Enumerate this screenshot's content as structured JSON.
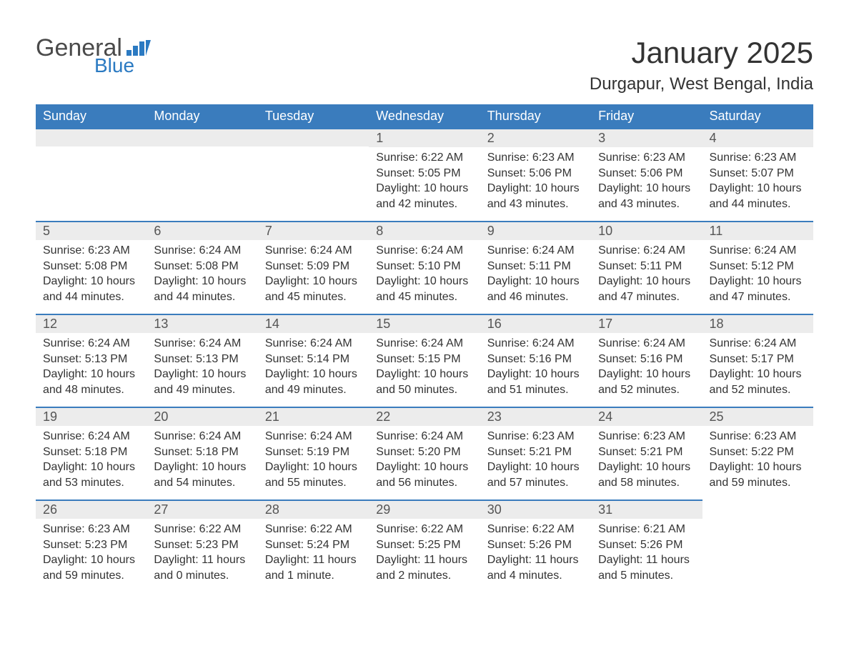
{
  "brand": {
    "word1": "General",
    "word2": "Blue"
  },
  "title": "January 2025",
  "location": "Durgapur, West Bengal, India",
  "colors": {
    "header_bg": "#3a7cbd",
    "header_text": "#ffffff",
    "daynum_bg": "#ececec",
    "row_border": "#3a7cbd",
    "body_text": "#333333",
    "logo_gray": "#4a4a4a",
    "logo_blue": "#2b7ac2",
    "page_bg": "#ffffff"
  },
  "typography": {
    "title_fontsize": 42,
    "location_fontsize": 24,
    "header_fontsize": 18,
    "daynum_fontsize": 18,
    "body_fontsize": 16
  },
  "layout": {
    "columns": 7,
    "rows": 5,
    "first_day_column_index": 3
  },
  "weekdays": [
    "Sunday",
    "Monday",
    "Tuesday",
    "Wednesday",
    "Thursday",
    "Friday",
    "Saturday"
  ],
  "days": [
    {
      "n": 1,
      "sunrise": "6:22 AM",
      "sunset": "5:05 PM",
      "daylight": "10 hours and 42 minutes."
    },
    {
      "n": 2,
      "sunrise": "6:23 AM",
      "sunset": "5:06 PM",
      "daylight": "10 hours and 43 minutes."
    },
    {
      "n": 3,
      "sunrise": "6:23 AM",
      "sunset": "5:06 PM",
      "daylight": "10 hours and 43 minutes."
    },
    {
      "n": 4,
      "sunrise": "6:23 AM",
      "sunset": "5:07 PM",
      "daylight": "10 hours and 44 minutes."
    },
    {
      "n": 5,
      "sunrise": "6:23 AM",
      "sunset": "5:08 PM",
      "daylight": "10 hours and 44 minutes."
    },
    {
      "n": 6,
      "sunrise": "6:24 AM",
      "sunset": "5:08 PM",
      "daylight": "10 hours and 44 minutes."
    },
    {
      "n": 7,
      "sunrise": "6:24 AM",
      "sunset": "5:09 PM",
      "daylight": "10 hours and 45 minutes."
    },
    {
      "n": 8,
      "sunrise": "6:24 AM",
      "sunset": "5:10 PM",
      "daylight": "10 hours and 45 minutes."
    },
    {
      "n": 9,
      "sunrise": "6:24 AM",
      "sunset": "5:11 PM",
      "daylight": "10 hours and 46 minutes."
    },
    {
      "n": 10,
      "sunrise": "6:24 AM",
      "sunset": "5:11 PM",
      "daylight": "10 hours and 47 minutes."
    },
    {
      "n": 11,
      "sunrise": "6:24 AM",
      "sunset": "5:12 PM",
      "daylight": "10 hours and 47 minutes."
    },
    {
      "n": 12,
      "sunrise": "6:24 AM",
      "sunset": "5:13 PM",
      "daylight": "10 hours and 48 minutes."
    },
    {
      "n": 13,
      "sunrise": "6:24 AM",
      "sunset": "5:13 PM",
      "daylight": "10 hours and 49 minutes."
    },
    {
      "n": 14,
      "sunrise": "6:24 AM",
      "sunset": "5:14 PM",
      "daylight": "10 hours and 49 minutes."
    },
    {
      "n": 15,
      "sunrise": "6:24 AM",
      "sunset": "5:15 PM",
      "daylight": "10 hours and 50 minutes."
    },
    {
      "n": 16,
      "sunrise": "6:24 AM",
      "sunset": "5:16 PM",
      "daylight": "10 hours and 51 minutes."
    },
    {
      "n": 17,
      "sunrise": "6:24 AM",
      "sunset": "5:16 PM",
      "daylight": "10 hours and 52 minutes."
    },
    {
      "n": 18,
      "sunrise": "6:24 AM",
      "sunset": "5:17 PM",
      "daylight": "10 hours and 52 minutes."
    },
    {
      "n": 19,
      "sunrise": "6:24 AM",
      "sunset": "5:18 PM",
      "daylight": "10 hours and 53 minutes."
    },
    {
      "n": 20,
      "sunrise": "6:24 AM",
      "sunset": "5:18 PM",
      "daylight": "10 hours and 54 minutes."
    },
    {
      "n": 21,
      "sunrise": "6:24 AM",
      "sunset": "5:19 PM",
      "daylight": "10 hours and 55 minutes."
    },
    {
      "n": 22,
      "sunrise": "6:24 AM",
      "sunset": "5:20 PM",
      "daylight": "10 hours and 56 minutes."
    },
    {
      "n": 23,
      "sunrise": "6:23 AM",
      "sunset": "5:21 PM",
      "daylight": "10 hours and 57 minutes."
    },
    {
      "n": 24,
      "sunrise": "6:23 AM",
      "sunset": "5:21 PM",
      "daylight": "10 hours and 58 minutes."
    },
    {
      "n": 25,
      "sunrise": "6:23 AM",
      "sunset": "5:22 PM",
      "daylight": "10 hours and 59 minutes."
    },
    {
      "n": 26,
      "sunrise": "6:23 AM",
      "sunset": "5:23 PM",
      "daylight": "10 hours and 59 minutes."
    },
    {
      "n": 27,
      "sunrise": "6:22 AM",
      "sunset": "5:23 PM",
      "daylight": "11 hours and 0 minutes."
    },
    {
      "n": 28,
      "sunrise": "6:22 AM",
      "sunset": "5:24 PM",
      "daylight": "11 hours and 1 minute."
    },
    {
      "n": 29,
      "sunrise": "6:22 AM",
      "sunset": "5:25 PM",
      "daylight": "11 hours and 2 minutes."
    },
    {
      "n": 30,
      "sunrise": "6:22 AM",
      "sunset": "5:26 PM",
      "daylight": "11 hours and 4 minutes."
    },
    {
      "n": 31,
      "sunrise": "6:21 AM",
      "sunset": "5:26 PM",
      "daylight": "11 hours and 5 minutes."
    }
  ],
  "labels": {
    "sunrise": "Sunrise: ",
    "sunset": "Sunset: ",
    "daylight": "Daylight: "
  }
}
